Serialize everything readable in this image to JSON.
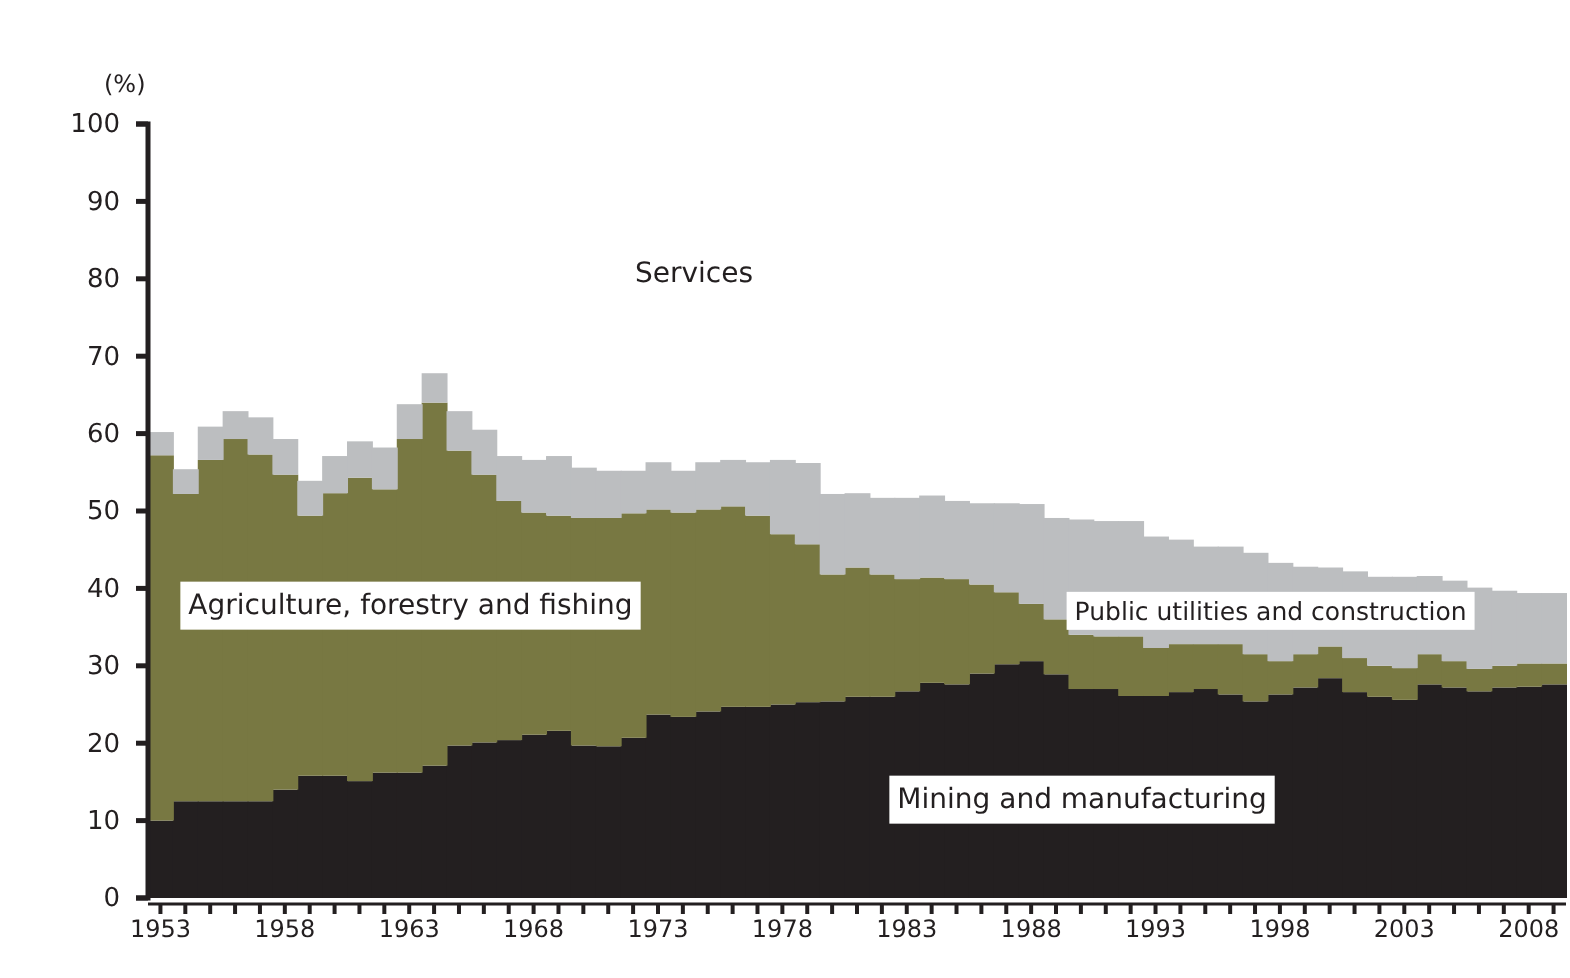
{
  "chart_data": {
    "type": "bar",
    "stacked": true,
    "ylabel": "(%)",
    "categories": [
      "1953",
      null,
      null,
      null,
      null,
      "1958",
      null,
      null,
      null,
      null,
      "1963",
      null,
      null,
      null,
      null,
      "1968",
      null,
      null,
      null,
      null,
      "1973",
      null,
      null,
      null,
      null,
      "1978",
      null,
      null,
      null,
      null,
      "1983",
      null,
      null,
      null,
      null,
      "1988",
      null,
      null,
      null,
      null,
      "1993",
      null,
      null,
      null,
      null,
      "1998",
      null,
      null,
      null,
      null,
      "2003",
      null,
      null,
      null,
      null,
      "2008",
      null
    ],
    "series": [
      {
        "name": "Mining and manufacturing",
        "color": "#231f20",
        "values": [
          10,
          12.5,
          12.5,
          12.5,
          12.5,
          14,
          15.8,
          15.8,
          15.1,
          16.2,
          16.2,
          17.1,
          19.7,
          20.1,
          20.4,
          21.1,
          21.6,
          19.7,
          19.6,
          20.7,
          23.7,
          23.4,
          24.1,
          24.7,
          24.7,
          25,
          25.3,
          25.4,
          26,
          26,
          26.7,
          27.8,
          27.6,
          29,
          30.2,
          30.6,
          28.9,
          27,
          27,
          26.1,
          26.1,
          26.6,
          27,
          26.3,
          25.4,
          26.3,
          27.2,
          28.4,
          26.6,
          26,
          25.6,
          27.6,
          27.2,
          26.7,
          27.2,
          27.3,
          27.6
        ]
      },
      {
        "name": "Agriculture, forestry and fishing",
        "color": "#787842",
        "values": [
          47.2,
          39.7,
          44.1,
          46.8,
          44.8,
          40.7,
          33.6,
          36.5,
          39.2,
          36.6,
          43.1,
          46.9,
          38.1,
          34.6,
          30.9,
          28.7,
          27.8,
          29.4,
          29.5,
          29,
          26.5,
          26.4,
          26.1,
          25.9,
          24.7,
          22,
          20.4,
          16.4,
          16.7,
          15.8,
          14.5,
          13.6,
          13.6,
          11.5,
          9.3,
          7.4,
          7.1,
          7,
          6.8,
          7.7,
          6.2,
          6.2,
          5.8,
          6.5,
          6.1,
          4.3,
          4.3,
          4.1,
          4.4,
          4,
          4.1,
          3.9,
          3.4,
          2.9,
          2.8,
          3,
          2.7
        ]
      },
      {
        "name": "Public utilities and construction",
        "color": "#bcbec0",
        "values": [
          3,
          3.2,
          4.3,
          3.6,
          4.8,
          4.6,
          4.5,
          4.8,
          4.7,
          5.4,
          4.5,
          3.8,
          5.1,
          5.8,
          5.8,
          6.8,
          7.7,
          6.5,
          6.1,
          5.5,
          6.1,
          5.4,
          6.1,
          6,
          6.9,
          9.6,
          10.5,
          10.4,
          9.6,
          9.9,
          10.5,
          10.6,
          10.1,
          10.5,
          11.5,
          12.9,
          13.1,
          14.9,
          14.9,
          14.9,
          14.4,
          13.5,
          12.6,
          12.6,
          13.1,
          12.7,
          11.3,
          10.2,
          11.2,
          11.5,
          11.8,
          10.1,
          10.4,
          10.5,
          9.7,
          9.1,
          9.1
        ]
      }
    ],
    "annotations": [
      "Services"
    ],
    "ylim": [
      0,
      100
    ],
    "yticks": [
      0,
      10,
      20,
      30,
      40,
      50,
      60,
      70,
      80,
      90,
      100
    ],
    "grid": false,
    "legend": false
  }
}
